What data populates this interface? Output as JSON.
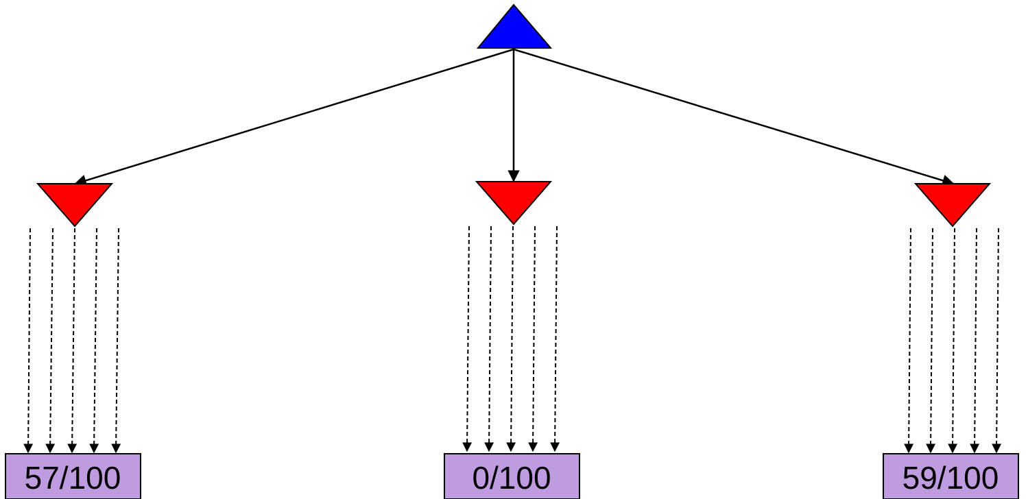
{
  "diagram": {
    "type": "game-tree",
    "root": {
      "shape": "triangle-up",
      "color": "#0000ff"
    },
    "children": [
      {
        "shape": "triangle-down",
        "color": "#ff0000",
        "samples": 5,
        "result": "57/100"
      },
      {
        "shape": "triangle-down",
        "color": "#ff0000",
        "samples": 5,
        "result": "0/100"
      },
      {
        "shape": "triangle-down",
        "color": "#ff0000",
        "samples": 5,
        "result": "59/100"
      }
    ],
    "leaf_color": "#bf9be0"
  }
}
